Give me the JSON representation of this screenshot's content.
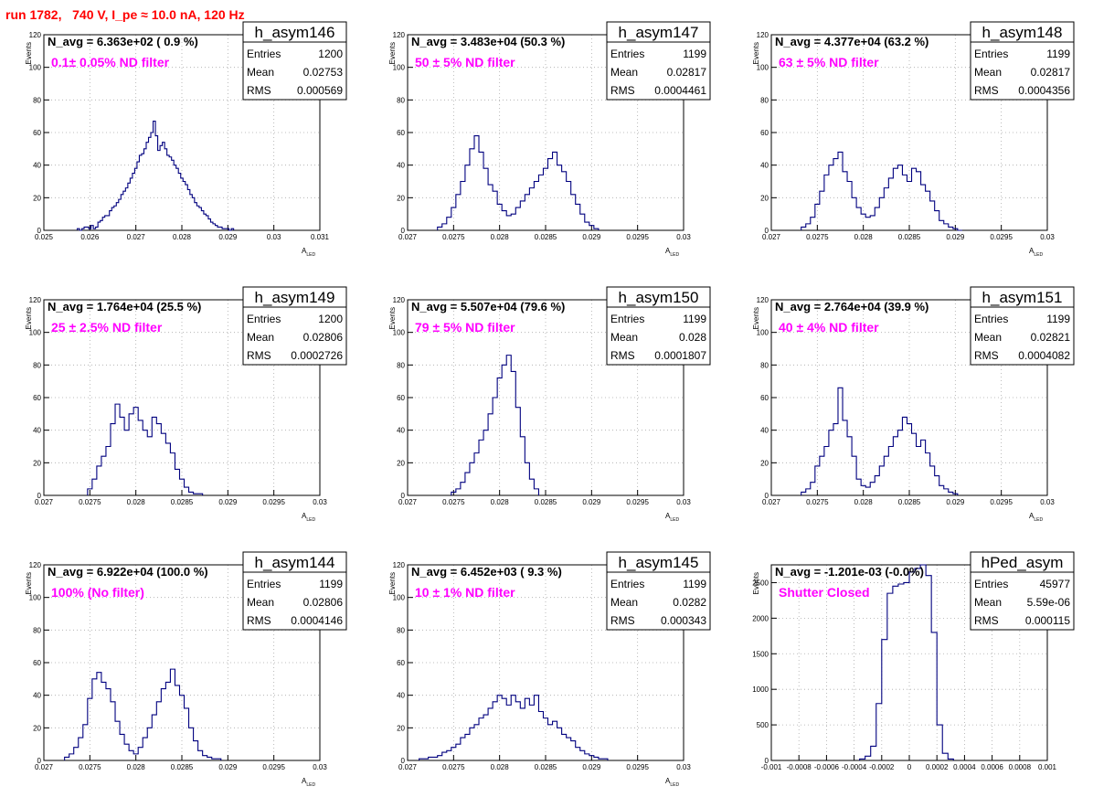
{
  "page": {
    "title": "run 1782,   740 V, I_pe ≈ 10.0 nA, 120 Hz"
  },
  "colors": {
    "title": "#ff0000",
    "histogram": "#00007f",
    "filter_text": "#ff00ff",
    "grid": "#aaaaaa"
  },
  "chart_data": [
    {
      "type": "histogram",
      "name": "h_asym146",
      "navg_text": "N_avg = 6.363e+02 ( 0.9 %)",
      "filter_text": "0.1± 0.05% ND filter",
      "stats": [
        [
          "Entries",
          "1200"
        ],
        [
          "Mean",
          "0.02753"
        ],
        [
          "RMS",
          "0.000569"
        ]
      ],
      "xlim": [
        0.025,
        0.031
      ],
      "ylim": [
        0,
        120
      ],
      "xticks": [
        0.025,
        0.026,
        0.027,
        0.028,
        0.029,
        0.03,
        0.031
      ],
      "xtick_labels": [
        "0.025",
        "0.026",
        "0.027",
        "0.028",
        "0.029",
        "0.03",
        "0.031"
      ],
      "yticks": [
        0,
        20,
        40,
        60,
        80,
        100,
        120
      ],
      "ytick_labels": [
        "0",
        "20",
        "40",
        "60",
        "80",
        "100",
        "120"
      ],
      "ylabel": "Events",
      "xlabel": "A",
      "xlabel_sub": "LED",
      "grid": true,
      "x": [
        0.02575,
        0.0258,
        0.02585,
        0.0259,
        0.02595,
        0.026,
        0.02605,
        0.0261,
        0.02615,
        0.0262,
        0.02625,
        0.0263,
        0.02635,
        0.0264,
        0.02645,
        0.0265,
        0.02655,
        0.0266,
        0.02665,
        0.0267,
        0.02675,
        0.0268,
        0.02685,
        0.0269,
        0.02695,
        0.027,
        0.02705,
        0.0271,
        0.02715,
        0.0272,
        0.02725,
        0.0273,
        0.02735,
        0.0274,
        0.02745,
        0.0275,
        0.02755,
        0.0276,
        0.02765,
        0.0277,
        0.02775,
        0.0278,
        0.02785,
        0.0279,
        0.02795,
        0.028,
        0.02805,
        0.0281,
        0.02815,
        0.0282,
        0.02825,
        0.0283,
        0.02835,
        0.0284,
        0.02845,
        0.0285,
        0.02855,
        0.0286,
        0.02865,
        0.0287,
        0.02875,
        0.0288,
        0.02885,
        0.0289,
        0.02895,
        0.029,
        0.02905,
        0.0291
      ],
      "values": [
        1,
        0,
        1,
        2,
        2,
        1,
        3,
        1,
        2,
        5,
        6,
        8,
        9,
        9,
        12,
        14,
        15,
        17,
        19,
        22,
        24,
        26,
        29,
        32,
        35,
        38,
        42,
        46,
        47,
        50,
        54,
        57,
        60,
        67,
        58,
        49,
        52,
        54,
        50,
        46,
        45,
        43,
        40,
        38,
        35,
        32,
        30,
        28,
        25,
        22,
        20,
        17,
        15,
        14,
        12,
        10,
        9,
        7,
        5,
        4,
        3,
        2,
        2,
        1,
        1,
        1,
        0,
        1
      ]
    },
    {
      "type": "histogram",
      "name": "h_asym147",
      "navg_text": "N_avg = 3.483e+04 (50.3 %)",
      "filter_text": "50 ± 5% ND filter",
      "stats": [
        [
          "Entries",
          "1199"
        ],
        [
          "Mean",
          "0.02817"
        ],
        [
          "RMS",
          "0.0004461"
        ]
      ],
      "xlim": [
        0.027,
        0.03
      ],
      "ylim": [
        0,
        120
      ],
      "xticks": [
        0.027,
        0.0275,
        0.028,
        0.0285,
        0.029,
        0.0295,
        0.03
      ],
      "xtick_labels": [
        "0.027",
        "0.0275",
        "0.028",
        "0.0285",
        "0.029",
        "0.0295",
        "0.03"
      ],
      "yticks": [
        0,
        20,
        40,
        60,
        80,
        100,
        120
      ],
      "ytick_labels": [
        "0",
        "20",
        "40",
        "60",
        "80",
        "100",
        "120"
      ],
      "ylabel": "Events",
      "xlabel": "A",
      "xlabel_sub": "LED",
      "grid": true,
      "x": [
        0.02735,
        0.0274,
        0.02745,
        0.0275,
        0.02755,
        0.0276,
        0.02765,
        0.0277,
        0.02775,
        0.0278,
        0.02785,
        0.0279,
        0.02795,
        0.028,
        0.02805,
        0.0281,
        0.02815,
        0.0282,
        0.02825,
        0.0283,
        0.02835,
        0.0284,
        0.02845,
        0.0285,
        0.02855,
        0.0286,
        0.02865,
        0.0287,
        0.02875,
        0.0288,
        0.02885,
        0.0289,
        0.02895,
        0.029,
        0.02905
      ],
      "values": [
        2,
        4,
        8,
        14,
        22,
        30,
        40,
        50,
        58,
        48,
        38,
        28,
        24,
        16,
        12,
        9,
        10,
        14,
        18,
        22,
        26,
        30,
        34,
        38,
        44,
        48,
        40,
        36,
        30,
        22,
        16,
        10,
        5,
        3,
        1
      ]
    },
    {
      "type": "histogram",
      "name": "h_asym148",
      "navg_text": "N_avg = 4.377e+04 (63.2 %)",
      "filter_text": "63 ± 5% ND filter",
      "stats": [
        [
          "Entries",
          "1199"
        ],
        [
          "Mean",
          "0.02817"
        ],
        [
          "RMS",
          "0.0004356"
        ]
      ],
      "xlim": [
        0.027,
        0.03
      ],
      "ylim": [
        0,
        120
      ],
      "xticks": [
        0.027,
        0.0275,
        0.028,
        0.0285,
        0.029,
        0.0295,
        0.03
      ],
      "xtick_labels": [
        "0.027",
        "0.0275",
        "0.028",
        "0.0285",
        "0.029",
        "0.0295",
        "0.03"
      ],
      "yticks": [
        0,
        20,
        40,
        60,
        80,
        100,
        120
      ],
      "ytick_labels": [
        "0",
        "20",
        "40",
        "60",
        "80",
        "100",
        "120"
      ],
      "ylabel": "Events",
      "xlabel": "A",
      "xlabel_sub": "LED",
      "grid": true,
      "x": [
        0.02735,
        0.0274,
        0.02745,
        0.0275,
        0.02755,
        0.0276,
        0.02765,
        0.0277,
        0.02775,
        0.0278,
        0.02785,
        0.0279,
        0.02795,
        0.028,
        0.02805,
        0.0281,
        0.02815,
        0.0282,
        0.02825,
        0.0283,
        0.02835,
        0.0284,
        0.02845,
        0.0285,
        0.02855,
        0.0286,
        0.02865,
        0.0287,
        0.02875,
        0.0288,
        0.02885,
        0.0289,
        0.02895,
        0.029,
        0.02905
      ],
      "values": [
        2,
        4,
        8,
        16,
        24,
        34,
        40,
        44,
        48,
        36,
        30,
        20,
        14,
        10,
        8,
        9,
        14,
        20,
        26,
        32,
        38,
        40,
        34,
        30,
        38,
        36,
        28,
        24,
        18,
        12,
        6,
        4,
        2,
        1,
        0
      ]
    },
    {
      "type": "histogram",
      "name": "h_asym149",
      "navg_text": "N_avg = 1.764e+04 (25.5 %)",
      "filter_text": "25 ± 2.5% ND filter",
      "stats": [
        [
          "Entries",
          "1200"
        ],
        [
          "Mean",
          "0.02806"
        ],
        [
          "RMS",
          "0.0002726"
        ]
      ],
      "xlim": [
        0.027,
        0.03
      ],
      "ylim": [
        0,
        120
      ],
      "xticks": [
        0.027,
        0.0275,
        0.028,
        0.0285,
        0.029,
        0.0295,
        0.03
      ],
      "xtick_labels": [
        "0.027",
        "0.0275",
        "0.028",
        "0.0285",
        "0.029",
        "0.0295",
        "0.03"
      ],
      "yticks": [
        0,
        20,
        40,
        60,
        80,
        100,
        120
      ],
      "ytick_labels": [
        "0",
        "20",
        "40",
        "60",
        "80",
        "100",
        "120"
      ],
      "ylabel": "Events",
      "xlabel": "A",
      "xlabel_sub": "LED",
      "grid": true,
      "x": [
        0.0275,
        0.02755,
        0.0276,
        0.02765,
        0.0277,
        0.02775,
        0.0278,
        0.02785,
        0.0279,
        0.02795,
        0.028,
        0.02805,
        0.0281,
        0.02815,
        0.0282,
        0.02825,
        0.0283,
        0.02835,
        0.0284,
        0.02845,
        0.0285,
        0.02855,
        0.0286,
        0.02865,
        0.0287
      ],
      "values": [
        4,
        10,
        18,
        24,
        30,
        44,
        56,
        48,
        40,
        50,
        54,
        46,
        40,
        36,
        48,
        44,
        38,
        32,
        26,
        16,
        10,
        5,
        2,
        1,
        1
      ]
    },
    {
      "type": "histogram",
      "name": "h_asym150",
      "navg_text": "N_avg = 5.507e+04 (79.6 %)",
      "filter_text": "79 ± 5% ND filter",
      "stats": [
        [
          "Entries",
          "1199"
        ],
        [
          "Mean",
          "0.028"
        ],
        [
          "RMS",
          "0.0001807"
        ]
      ],
      "xlim": [
        0.027,
        0.03
      ],
      "ylim": [
        0,
        120
      ],
      "xticks": [
        0.027,
        0.0275,
        0.028,
        0.0285,
        0.029,
        0.0295,
        0.03
      ],
      "xtick_labels": [
        "0.027",
        "0.0275",
        "0.028",
        "0.0285",
        "0.029",
        "0.0295",
        "0.03"
      ],
      "yticks": [
        0,
        20,
        40,
        60,
        80,
        100,
        120
      ],
      "ytick_labels": [
        "0",
        "20",
        "40",
        "60",
        "80",
        "100",
        "120"
      ],
      "ylabel": "Events",
      "xlabel": "A",
      "xlabel_sub": "LED",
      "grid": true,
      "x": [
        0.0275,
        0.02755,
        0.0276,
        0.02765,
        0.0277,
        0.02775,
        0.0278,
        0.02785,
        0.0279,
        0.02795,
        0.028,
        0.02805,
        0.0281,
        0.02815,
        0.0282,
        0.02825,
        0.0283,
        0.02835,
        0.0284
      ],
      "values": [
        2,
        4,
        8,
        14,
        20,
        26,
        34,
        40,
        50,
        60,
        72,
        80,
        86,
        76,
        54,
        36,
        20,
        10,
        4
      ]
    },
    {
      "type": "histogram",
      "name": "h_asym151",
      "navg_text": "N_avg = 2.764e+04 (39.9 %)",
      "filter_text": "40 ± 4% ND filter",
      "stats": [
        [
          "Entries",
          "1199"
        ],
        [
          "Mean",
          "0.02821"
        ],
        [
          "RMS",
          "0.0004082"
        ]
      ],
      "xlim": [
        0.027,
        0.03
      ],
      "ylim": [
        0,
        120
      ],
      "xticks": [
        0.027,
        0.0275,
        0.028,
        0.0285,
        0.029,
        0.0295,
        0.03
      ],
      "xtick_labels": [
        "0.027",
        "0.0275",
        "0.028",
        "0.0285",
        "0.029",
        "0.0295",
        "0.03"
      ],
      "yticks": [
        0,
        20,
        40,
        60,
        80,
        100,
        120
      ],
      "ytick_labels": [
        "0",
        "20",
        "40",
        "60",
        "80",
        "100",
        "120"
      ],
      "ylabel": "Events",
      "xlabel": "A",
      "xlabel_sub": "LED",
      "grid": true,
      "x": [
        0.02735,
        0.0274,
        0.02745,
        0.0275,
        0.02755,
        0.0276,
        0.02765,
        0.0277,
        0.02775,
        0.0278,
        0.02785,
        0.0279,
        0.02795,
        0.028,
        0.02805,
        0.0281,
        0.02815,
        0.0282,
        0.02825,
        0.0283,
        0.02835,
        0.0284,
        0.02845,
        0.0285,
        0.02855,
        0.0286,
        0.02865,
        0.0287,
        0.02875,
        0.0288,
        0.02885,
        0.0289,
        0.02895,
        0.029
      ],
      "values": [
        2,
        4,
        8,
        18,
        24,
        30,
        40,
        44,
        66,
        46,
        36,
        24,
        10,
        6,
        5,
        8,
        12,
        18,
        24,
        30,
        36,
        40,
        48,
        44,
        38,
        30,
        34,
        26,
        18,
        12,
        6,
        4,
        2,
        1
      ]
    },
    {
      "type": "histogram",
      "name": "h_asym144",
      "navg_text": "N_avg = 6.922e+04 (100.0 %)",
      "filter_text": "100% (No filter)",
      "stats": [
        [
          "Entries",
          "1199"
        ],
        [
          "Mean",
          "0.02806"
        ],
        [
          "RMS",
          "0.0004146"
        ]
      ],
      "xlim": [
        0.027,
        0.03
      ],
      "ylim": [
        0,
        120
      ],
      "xticks": [
        0.027,
        0.0275,
        0.028,
        0.0285,
        0.029,
        0.0295,
        0.03
      ],
      "xtick_labels": [
        "0.027",
        "0.0275",
        "0.028",
        "0.0285",
        "0.029",
        "0.0295",
        "0.03"
      ],
      "yticks": [
        0,
        20,
        40,
        60,
        80,
        100,
        120
      ],
      "ytick_labels": [
        "0",
        "20",
        "40",
        "60",
        "80",
        "100",
        "120"
      ],
      "ylabel": "Events",
      "xlabel": "A",
      "xlabel_sub": "LED",
      "grid": true,
      "x": [
        0.02725,
        0.0273,
        0.02735,
        0.0274,
        0.02745,
        0.0275,
        0.02755,
        0.0276,
        0.02765,
        0.0277,
        0.02775,
        0.0278,
        0.02785,
        0.0279,
        0.02795,
        0.028,
        0.02805,
        0.0281,
        0.02815,
        0.0282,
        0.02825,
        0.0283,
        0.02835,
        0.0284,
        0.02845,
        0.0285,
        0.02855,
        0.0286,
        0.02865,
        0.0287,
        0.02875,
        0.0288,
        0.02885,
        0.0289
      ],
      "values": [
        2,
        4,
        8,
        14,
        22,
        38,
        50,
        54,
        48,
        44,
        36,
        24,
        16,
        10,
        6,
        4,
        8,
        14,
        20,
        28,
        36,
        44,
        48,
        56,
        46,
        40,
        32,
        20,
        12,
        6,
        3,
        2,
        1,
        1
      ]
    },
    {
      "type": "histogram",
      "name": "h_asym145",
      "navg_text": "N_avg = 6.452e+03 ( 9.3 %)",
      "filter_text": "10 ± 1% ND filter",
      "stats": [
        [
          "Entries",
          "1199"
        ],
        [
          "Mean",
          "0.0282"
        ],
        [
          "RMS",
          "0.000343"
        ]
      ],
      "xlim": [
        0.027,
        0.03
      ],
      "ylim": [
        0,
        120
      ],
      "xticks": [
        0.027,
        0.0275,
        0.028,
        0.0285,
        0.029,
        0.0295,
        0.03
      ],
      "xtick_labels": [
        "0.027",
        "0.0275",
        "0.028",
        "0.0285",
        "0.029",
        "0.0295",
        "0.03"
      ],
      "yticks": [
        0,
        20,
        40,
        60,
        80,
        100,
        120
      ],
      "ytick_labels": [
        "0",
        "20",
        "40",
        "60",
        "80",
        "100",
        "120"
      ],
      "ylabel": "Events",
      "xlabel": "A",
      "xlabel_sub": "LED",
      "grid": true,
      "x": [
        0.02715,
        0.0272,
        0.02725,
        0.0273,
        0.02735,
        0.0274,
        0.02745,
        0.0275,
        0.02755,
        0.0276,
        0.02765,
        0.0277,
        0.02775,
        0.0278,
        0.02785,
        0.0279,
        0.02795,
        0.028,
        0.02805,
        0.0281,
        0.02815,
        0.0282,
        0.02825,
        0.0283,
        0.02835,
        0.0284,
        0.02845,
        0.0285,
        0.02855,
        0.0286,
        0.02865,
        0.0287,
        0.02875,
        0.0288,
        0.02885,
        0.0289,
        0.02895,
        0.029,
        0.02905,
        0.0291,
        0.02915
      ],
      "values": [
        1,
        1,
        2,
        2,
        3,
        5,
        6,
        8,
        10,
        14,
        16,
        20,
        22,
        26,
        28,
        32,
        36,
        40,
        38,
        34,
        40,
        36,
        32,
        38,
        34,
        40,
        30,
        26,
        22,
        24,
        20,
        16,
        14,
        12,
        8,
        6,
        4,
        3,
        2,
        1,
        1
      ]
    },
    {
      "type": "histogram",
      "name": "hPed_asym",
      "navg_text": "N_avg = -1.201e-03 (-0.0%)",
      "filter_text": "Shutter Closed",
      "stats": [
        [
          "Entries",
          "45977"
        ],
        [
          "Mean",
          "5.59e-06"
        ],
        [
          "RMS",
          "0.000115"
        ]
      ],
      "xlim": [
        -0.001,
        0.001
      ],
      "ylim": [
        0,
        2750
      ],
      "xticks": [
        -0.001,
        -0.0008,
        -0.0006,
        -0.0004,
        -0.0002,
        0,
        0.0002,
        0.0004,
        0.0006,
        0.0008,
        0.001
      ],
      "xtick_labels": [
        "-0.001",
        "-0.0008",
        "-0.0006",
        "-0.0004",
        "-0.0002",
        "0",
        "0.0002",
        "0.0004",
        "0.0006",
        "0.0008",
        "0.001"
      ],
      "yticks": [
        0,
        500,
        1000,
        1500,
        2000,
        2500
      ],
      "ytick_labels": [
        "0",
        "500",
        "1000",
        "1500",
        "2000",
        "2500"
      ],
      "ylabel": "Events",
      "xlabel": "",
      "xlabel_sub": "",
      "grid": true,
      "x": [
        -0.00034,
        -0.0003,
        -0.00026,
        -0.00022,
        -0.00018,
        -0.00014,
        -0.0001,
        -6e-05,
        -2e-05,
        2e-05,
        6e-05,
        0.0001,
        0.00014,
        0.00018,
        0.00022,
        0.00026,
        0.0003
      ],
      "values": [
        20,
        60,
        200,
        800,
        1700,
        2350,
        2450,
        2480,
        2500,
        2650,
        2700,
        2750,
        2600,
        1800,
        500,
        100,
        20
      ]
    }
  ]
}
